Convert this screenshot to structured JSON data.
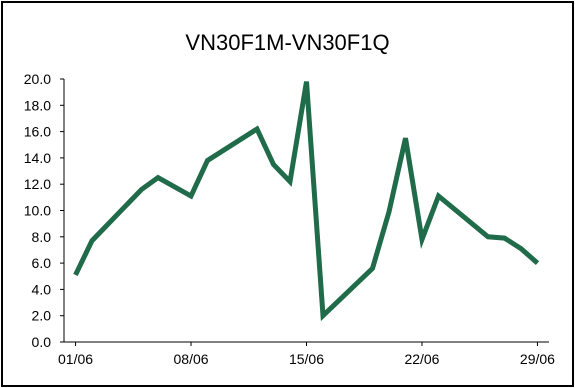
{
  "chart_data": {
    "type": "line",
    "title": "VN30F1M-VN30F1Q",
    "xlabel": "",
    "ylabel": "",
    "ylim": [
      0,
      20
    ],
    "yticks": [
      0.0,
      2.0,
      4.0,
      6.0,
      8.0,
      10.0,
      12.0,
      14.0,
      16.0,
      18.0,
      20.0
    ],
    "ytick_labels": [
      "0.0",
      "2.0",
      "4.0",
      "6.0",
      "8.0",
      "10.0",
      "12.0",
      "14.0",
      "16.0",
      "18.0",
      "20.0"
    ],
    "xticks": [
      {
        "label": "01/06",
        "x": 0
      },
      {
        "label": "08/06",
        "x": 7
      },
      {
        "label": "15/06",
        "x": 14
      },
      {
        "label": "22/06",
        "x": 21
      },
      {
        "label": "29/06",
        "x": 28
      }
    ],
    "xlim": [
      -0.7,
      28.7
    ],
    "grid": false,
    "series": [
      {
        "color": "#1f6b4a",
        "x": [
          0,
          1,
          4,
          5,
          7,
          8,
          11,
          12,
          13,
          14,
          15,
          18,
          19,
          20,
          21,
          22,
          25,
          26,
          27,
          28
        ],
        "values": [
          5.1,
          7.7,
          11.6,
          12.5,
          11.1,
          13.8,
          16.2,
          13.5,
          12.2,
          19.8,
          2.0,
          5.6,
          9.9,
          15.5,
          7.8,
          11.1,
          8.0,
          7.9,
          7.1,
          6.0
        ]
      }
    ]
  }
}
